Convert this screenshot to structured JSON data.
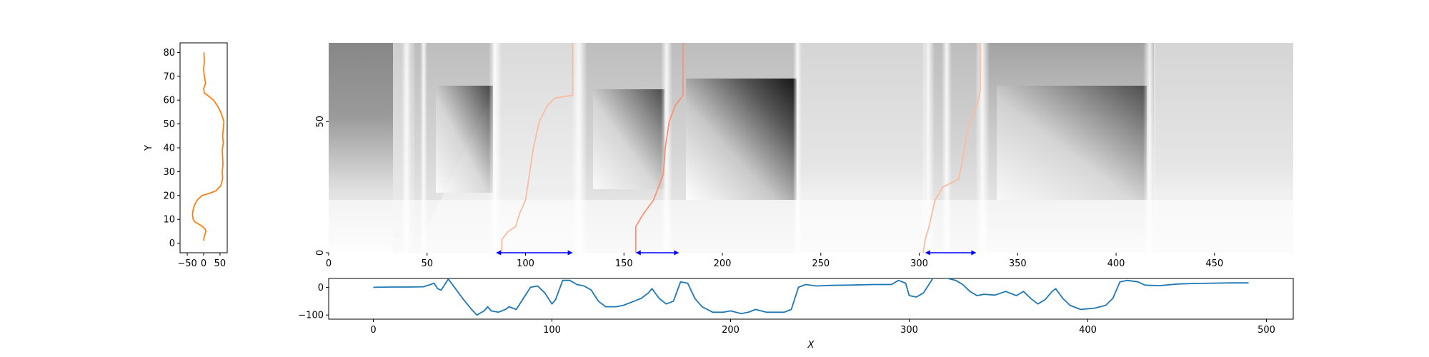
{
  "chart_data": [
    {
      "id": "left-profile",
      "type": "line",
      "ylabel": "Y",
      "xlabel": "",
      "xlim": [
        -72,
        72
      ],
      "ylim": [
        -4,
        84
      ],
      "xticks": [
        -50,
        0,
        50
      ],
      "xtick_labels": [
        "−50",
        "0",
        "50"
      ],
      "yticks": [
        0,
        10,
        20,
        30,
        40,
        50,
        60,
        70,
        80
      ],
      "ytick_labels": [
        "0",
        "10",
        "20",
        "30",
        "40",
        "50",
        "60",
        "70",
        "80"
      ],
      "series": [
        {
          "color": "#ff7f0e",
          "points": [
            [
              0,
              1
            ],
            [
              2,
              3
            ],
            [
              5,
              4
            ],
            [
              7,
              5
            ],
            [
              4,
              6
            ],
            [
              -3,
              7
            ],
            [
              -15,
              8
            ],
            [
              -27,
              9
            ],
            [
              -32,
              10
            ],
            [
              -34,
              12
            ],
            [
              -32,
              14
            ],
            [
              -28,
              16
            ],
            [
              -20,
              18
            ],
            [
              -5,
              20
            ],
            [
              20,
              21
            ],
            [
              38,
              22
            ],
            [
              52,
              24
            ],
            [
              58,
              27
            ],
            [
              57,
              30
            ],
            [
              59,
              33
            ],
            [
              58,
              36
            ],
            [
              57,
              39
            ],
            [
              60,
              42
            ],
            [
              58,
              45
            ],
            [
              60,
              48
            ],
            [
              62,
              51
            ],
            [
              55,
              54
            ],
            [
              45,
              57
            ],
            [
              30,
              60
            ],
            [
              12,
              62
            ],
            [
              2,
              63
            ],
            [
              0,
              65
            ],
            [
              6,
              67
            ],
            [
              2,
              70
            ],
            [
              0,
              73
            ],
            [
              2,
              76
            ],
            [
              1,
              80
            ]
          ]
        }
      ]
    },
    {
      "id": "heatmap-main",
      "type": "heatmap",
      "xlim": [
        0,
        490
      ],
      "ylim": [
        0,
        80
      ],
      "xticks": [
        0,
        50,
        100,
        150,
        200,
        250,
        300,
        350,
        400,
        450
      ],
      "xtick_labels": [
        "0",
        "50",
        "100",
        "150",
        "200",
        "250",
        "300",
        "350",
        "400",
        "450"
      ],
      "yticks": [
        0,
        50
      ],
      "ytick_labels": [
        "0",
        "50"
      ],
      "colormap": "greys",
      "paths": [
        {
          "color": "#fcbba1",
          "points": [
            [
              88,
              0
            ],
            [
              88,
              5
            ],
            [
              91,
              8
            ],
            [
              95,
              10
            ],
            [
              97,
              15
            ],
            [
              100,
              20
            ],
            [
              102,
              30
            ],
            [
              104,
              40
            ],
            [
              107,
              50
            ],
            [
              111,
              56
            ],
            [
              115,
              59
            ],
            [
              124,
              60
            ],
            [
              124,
              80
            ]
          ]
        },
        {
          "color": "#fc9272",
          "points": [
            [
              156,
              0
            ],
            [
              156,
              10
            ],
            [
              160,
              15
            ],
            [
              165,
              20
            ],
            [
              170,
              30
            ],
            [
              171,
              40
            ],
            [
              173,
              50
            ],
            [
              176,
              56
            ],
            [
              180,
              60
            ],
            [
              180,
              80
            ]
          ]
        },
        {
          "color": "#fcbba1",
          "points": [
            [
              302,
              0
            ],
            [
              303,
              5
            ],
            [
              305,
              10
            ],
            [
              308,
              20
            ],
            [
              312,
              25
            ],
            [
              320,
              28
            ],
            [
              322,
              35
            ],
            [
              324,
              45
            ],
            [
              326,
              50
            ],
            [
              330,
              58
            ],
            [
              331,
              62
            ],
            [
              331,
              80
            ]
          ]
        }
      ],
      "ranges": [
        {
          "start": 85,
          "end": 124,
          "color": "#0000ff"
        },
        {
          "start": 156,
          "end": 178,
          "color": "#0000ff"
        },
        {
          "start": 303,
          "end": 329,
          "color": "#0000ff"
        }
      ]
    },
    {
      "id": "bottom-signal",
      "type": "line",
      "xlabel": "X",
      "ylabel": "",
      "xlim": [
        -25,
        515
      ],
      "ylim": [
        -115,
        32
      ],
      "xticks": [
        0,
        100,
        200,
        300,
        400,
        500
      ],
      "xtick_labels": [
        "0",
        "100",
        "200",
        "300",
        "400",
        "500"
      ],
      "yticks": [
        0,
        -100
      ],
      "ytick_labels": [
        "0",
        "−100"
      ],
      "series": [
        {
          "color": "#1f77b4",
          "points": [
            [
              0,
              0
            ],
            [
              10,
              1
            ],
            [
              20,
              1
            ],
            [
              28,
              2
            ],
            [
              32,
              10
            ],
            [
              34,
              15
            ],
            [
              36,
              -5
            ],
            [
              38,
              -10
            ],
            [
              42,
              30
            ],
            [
              46,
              -5
            ],
            [
              50,
              -40
            ],
            [
              55,
              -80
            ],
            [
              58,
              -100
            ],
            [
              62,
              -85
            ],
            [
              64,
              -70
            ],
            [
              66,
              -85
            ],
            [
              70,
              -90
            ],
            [
              74,
              -80
            ],
            [
              76,
              -70
            ],
            [
              80,
              -80
            ],
            [
              84,
              -40
            ],
            [
              88,
              0
            ],
            [
              92,
              5
            ],
            [
              96,
              -20
            ],
            [
              98,
              -40
            ],
            [
              100,
              -60
            ],
            [
              102,
              -45
            ],
            [
              104,
              -10
            ],
            [
              106,
              25
            ],
            [
              110,
              25
            ],
            [
              114,
              10
            ],
            [
              118,
              5
            ],
            [
              122,
              -10
            ],
            [
              126,
              -50
            ],
            [
              130,
              -70
            ],
            [
              136,
              -70
            ],
            [
              140,
              -65
            ],
            [
              146,
              -50
            ],
            [
              150,
              -40
            ],
            [
              154,
              -20
            ],
            [
              156,
              -5
            ],
            [
              160,
              -40
            ],
            [
              164,
              -60
            ],
            [
              168,
              -50
            ],
            [
              172,
              20
            ],
            [
              176,
              15
            ],
            [
              180,
              -40
            ],
            [
              184,
              -70
            ],
            [
              190,
              -90
            ],
            [
              196,
              -90
            ],
            [
              200,
              -85
            ],
            [
              206,
              -95
            ],
            [
              210,
              -90
            ],
            [
              214,
              -80
            ],
            [
              220,
              -90
            ],
            [
              230,
              -90
            ],
            [
              234,
              -80
            ],
            [
              238,
              0
            ],
            [
              242,
              10
            ],
            [
              248,
              5
            ],
            [
              256,
              7
            ],
            [
              266,
              8
            ],
            [
              280,
              10
            ],
            [
              290,
              10
            ],
            [
              294,
              25
            ],
            [
              298,
              15
            ],
            [
              300,
              -30
            ],
            [
              304,
              -35
            ],
            [
              308,
              -20
            ],
            [
              314,
              40
            ],
            [
              320,
              35
            ],
            [
              326,
              25
            ],
            [
              330,
              10
            ],
            [
              334,
              -15
            ],
            [
              338,
              -30
            ],
            [
              342,
              -25
            ],
            [
              348,
              -28
            ],
            [
              354,
              -15
            ],
            [
              360,
              -30
            ],
            [
              364,
              -15
            ],
            [
              368,
              -40
            ],
            [
              372,
              -60
            ],
            [
              376,
              -45
            ],
            [
              380,
              -15
            ],
            [
              382,
              -5
            ],
            [
              386,
              -40
            ],
            [
              390,
              -65
            ],
            [
              396,
              -80
            ],
            [
              404,
              -75
            ],
            [
              410,
              -65
            ],
            [
              414,
              -40
            ],
            [
              418,
              20
            ],
            [
              422,
              25
            ],
            [
              428,
              20
            ],
            [
              432,
              8
            ],
            [
              440,
              6
            ],
            [
              450,
              12
            ],
            [
              460,
              14
            ],
            [
              470,
              15
            ],
            [
              480,
              16
            ],
            [
              490,
              16
            ]
          ]
        }
      ]
    }
  ]
}
